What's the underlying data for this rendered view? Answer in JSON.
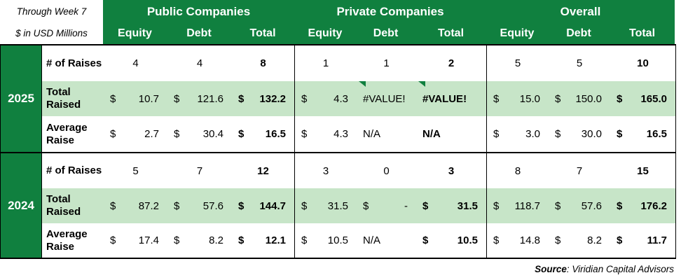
{
  "title_block": {
    "line1": "Through Week 7",
    "line2": "$ in USD Millions"
  },
  "header": {
    "groups": [
      "Public Companies",
      "Private Companies",
      "Overall"
    ],
    "columns": [
      "Equity",
      "Debt",
      "Total",
      "Equity",
      "Debt",
      "Total",
      "Equity",
      "Debt",
      "Total"
    ]
  },
  "colors": {
    "dark_green": "#10803F",
    "light_green": "#C7E5C8",
    "header_text": "#FFFFFF"
  },
  "sections": [
    {
      "year": "2025",
      "rows": [
        {
          "label": "# of Raises",
          "cells": [
            {
              "v": "4"
            },
            {
              "v": "4"
            },
            {
              "v": "8"
            },
            {
              "v": "1"
            },
            {
              "v": "1"
            },
            {
              "v": "2"
            },
            {
              "v": "5"
            },
            {
              "v": "5"
            },
            {
              "v": "10"
            }
          ]
        },
        {
          "label": "Total Raised",
          "cells": [
            {
              "p": "$",
              "v": "10.7"
            },
            {
              "p": "$",
              "v": "121.6"
            },
            {
              "p": "$",
              "v": "132.2"
            },
            {
              "p": "$",
              "v": "4.3"
            },
            {
              "e": "#VALUE!"
            },
            {
              "e": "#VALUE!"
            },
            {
              "p": "$",
              "v": "15.0"
            },
            {
              "p": "$",
              "v": "150.0"
            },
            {
              "p": "$",
              "v": "165.0"
            }
          ]
        },
        {
          "label": "Average Raise",
          "cells": [
            {
              "p": "$",
              "v": "2.7"
            },
            {
              "p": "$",
              "v": "30.4"
            },
            {
              "p": "$",
              "v": "16.5"
            },
            {
              "p": "$",
              "v": "4.3"
            },
            {
              "e": "N/A"
            },
            {
              "e": "N/A"
            },
            {
              "p": "$",
              "v": "3.0"
            },
            {
              "p": "$",
              "v": "30.0"
            },
            {
              "p": "$",
              "v": "16.5"
            }
          ]
        }
      ]
    },
    {
      "year": "2024",
      "rows": [
        {
          "label": "# of Raises",
          "cells": [
            {
              "v": "5"
            },
            {
              "v": "7"
            },
            {
              "v": "12"
            },
            {
              "v": "3"
            },
            {
              "v": "0"
            },
            {
              "v": "3"
            },
            {
              "v": "8"
            },
            {
              "v": "7"
            },
            {
              "v": "15"
            }
          ]
        },
        {
          "label": "Total Raised",
          "cells": [
            {
              "p": "$",
              "v": "87.2"
            },
            {
              "p": "$",
              "v": "57.6"
            },
            {
              "p": "$",
              "v": "144.7"
            },
            {
              "p": "$",
              "v": "31.5"
            },
            {
              "p": "$",
              "v": "-"
            },
            {
              "p": "$",
              "v": "31.5"
            },
            {
              "p": "$",
              "v": "118.7"
            },
            {
              "p": "$",
              "v": "57.6"
            },
            {
              "p": "$",
              "v": "176.2"
            }
          ]
        },
        {
          "label": "Average Raise",
          "cells": [
            {
              "p": "$",
              "v": "17.4"
            },
            {
              "p": "$",
              "v": "8.2"
            },
            {
              "p": "$",
              "v": "12.1"
            },
            {
              "p": "$",
              "v": "10.5"
            },
            {
              "e": "N/A"
            },
            {
              "p": "$",
              "v": "10.5"
            },
            {
              "p": "$",
              "v": "14.8"
            },
            {
              "p": "$",
              "v": "8.2"
            },
            {
              "p": "$",
              "v": "11.7"
            }
          ]
        }
      ]
    }
  ],
  "footer": {
    "source_label": "Source",
    "source_rest": ": Viridian Capital Advisors"
  }
}
